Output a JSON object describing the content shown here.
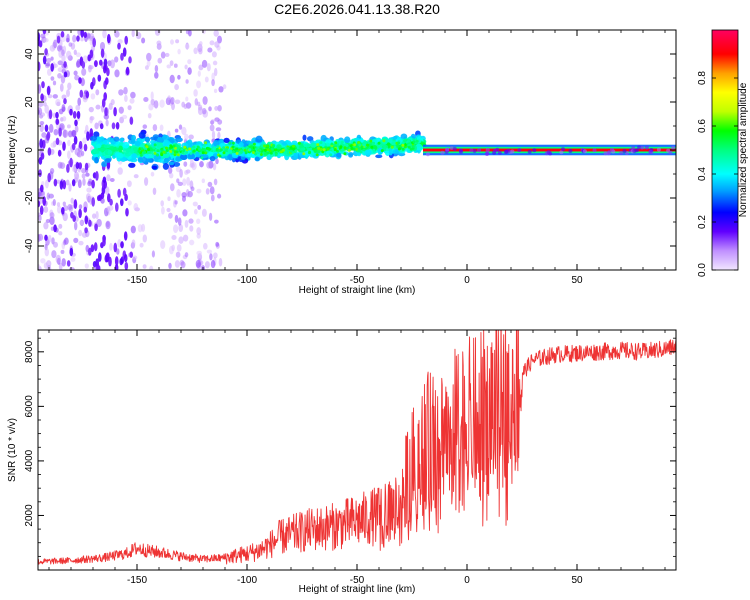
{
  "title": "C2E6.2026.041.13.38.R20",
  "chart_data": [
    {
      "type": "heatmap",
      "xlabel": "Height of straight line (km)",
      "ylabel": "Frequency (Hz)",
      "xlim": [
        -195,
        95
      ],
      "ylim": [
        -50,
        50
      ],
      "xticks": [
        -150,
        -100,
        -50,
        0,
        50
      ],
      "yticks": [
        -40,
        -20,
        0,
        20,
        40
      ],
      "colorbar": {
        "label": "Normalized spectral amplitude",
        "range": [
          0,
          1
        ],
        "ticks": [
          0.0,
          0.2,
          0.4,
          0.6,
          0.8
        ],
        "colors": [
          "#f0e0ff",
          "#c090ff",
          "#6000ff",
          "#0000ff",
          "#00a0ff",
          "#00ffff",
          "#00ff80",
          "#00ff00",
          "#c0ff00",
          "#ffff00",
          "#ffa000",
          "#ff0000",
          "#ff0060"
        ]
      },
      "features": [
        {
          "x_range": [
            -195,
            -110
          ],
          "freq_spread_hz": 50,
          "amplitude": "low",
          "description": "diffuse"
        },
        {
          "x_range": [
            -170,
            -20
          ],
          "freq_center_hz": 0,
          "freq_spread_hz": 10,
          "amplitude": "medium"
        },
        {
          "x_range": [
            -20,
            95
          ],
          "freq_center_hz": 0,
          "freq_spread_hz": 1,
          "amplitude": "high"
        }
      ]
    },
    {
      "type": "line",
      "xlabel": "Height of straight line (km)",
      "ylabel": "SNR (10 * v/v)",
      "xlim": [
        -195,
        95
      ],
      "ylim": [
        0,
        8800
      ],
      "xticks": [
        -150,
        -100,
        -50,
        0,
        50
      ],
      "yticks": [
        2000,
        4000,
        6000,
        8000
      ],
      "series": [
        {
          "name": "SNR",
          "color": "#ee3333",
          "x": [
            -195,
            -180,
            -165,
            -155,
            -150,
            -145,
            -140,
            -130,
            -120,
            -110,
            -100,
            -95,
            -90,
            -85,
            -80,
            -75,
            -70,
            -65,
            -60,
            -55,
            -50,
            -45,
            -40,
            -35,
            -30,
            -27,
            -25,
            -22,
            -20,
            -15,
            -10,
            -5,
            0,
            5,
            10,
            15,
            20,
            25,
            30,
            35,
            40,
            50,
            60,
            70,
            80,
            90,
            95
          ],
          "y": [
            300,
            350,
            450,
            600,
            800,
            700,
            650,
            500,
            400,
            450,
            600,
            700,
            900,
            1200,
            1300,
            1400,
            1500,
            1550,
            1600,
            1700,
            1800,
            1900,
            2000,
            2100,
            2500,
            3500,
            3800,
            4200,
            4600,
            4800,
            5200,
            5300,
            5500,
            5600,
            5800,
            6200,
            6500,
            7200,
            7700,
            7800,
            7900,
            7950,
            8000,
            8050,
            8000,
            8100,
            8200
          ]
        }
      ]
    }
  ]
}
